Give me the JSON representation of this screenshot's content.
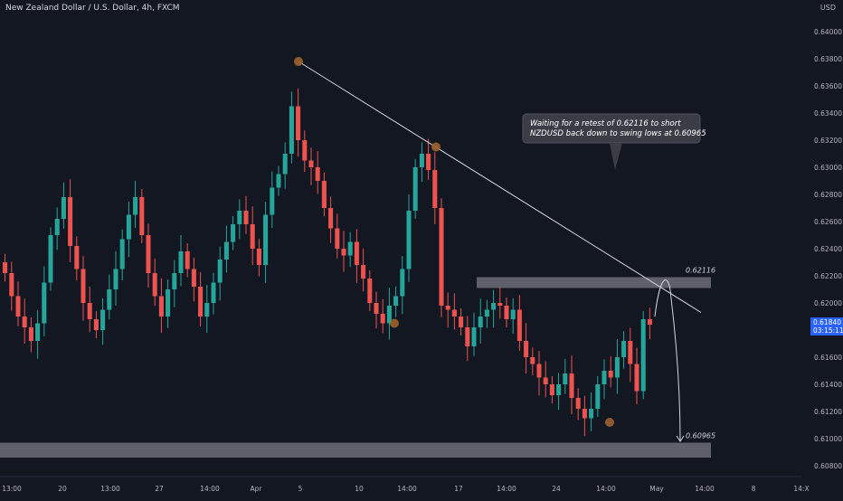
{
  "header": {
    "title": "New Zealand Dollar / U.S. Dollar, 4h, FXCM",
    "currency": "USD"
  },
  "colors": {
    "background": "#131722",
    "up": "#26a69a",
    "down": "#ef5350",
    "axis_text": "#b2b5be",
    "zone": "#787b86",
    "marker": "#a0622d",
    "price_tag": "#2962ff"
  },
  "chart_data": {
    "type": "candlestick",
    "title": "New Zealand Dollar / U.S. Dollar, 4h, FXCM",
    "ylabel": "USD",
    "ylim": [
      0.6072,
      0.6414
    ],
    "y_ticks": [
      0.64,
      0.638,
      0.636,
      0.634,
      0.632,
      0.63,
      0.628,
      0.626,
      0.624,
      0.622,
      0.62,
      0.618,
      0.616,
      0.614,
      0.612,
      0.61,
      0.608
    ],
    "y_tick_labels": [
      "0.64000",
      "0.63800",
      "0.63600",
      "0.63400",
      "0.63200",
      "0.63000",
      "0.62800",
      "0.62600",
      "0.62400",
      "0.62200",
      "0.62000",
      "0.61800",
      "0.61600",
      "0.61400",
      "0.61200",
      "0.61000",
      "0.60800"
    ],
    "x_tick_labels": [
      "13:00",
      "20",
      "13:00",
      "27",
      "14:00",
      "Apr",
      "5",
      "10",
      "14:00",
      "17",
      "14:00",
      "24",
      "14:00",
      "May",
      "14:00",
      "8",
      "14:X"
    ],
    "grid": false,
    "current_price": {
      "label": "0.61840",
      "countdown": "03:15:11"
    },
    "zones": [
      {
        "label": "0.62116",
        "price": 0.62116,
        "top": 0.6219,
        "bottom": 0.6211
      },
      {
        "label": "0.60965",
        "price": 0.60965,
        "top": 0.6097,
        "bottom": 0.6086
      }
    ],
    "trendline": {
      "from": {
        "bar": 44,
        "price": 0.6378
      },
      "to": {
        "bar": 130,
        "price": 0.6193
      }
    },
    "swing_points": [
      {
        "bar": 44,
        "price": 0.6378
      },
      {
        "bar": 58,
        "price": 0.6185
      },
      {
        "bar": 64,
        "price": 0.6315
      },
      {
        "bar": 90,
        "price": 0.6112
      }
    ],
    "annotation": {
      "lines": [
        "Waiting for a retest of 0.62116 to short",
        "NZDUSD back down to swing lows at 0.60965"
      ]
    },
    "candles_close": [
      0.6222,
      0.6205,
      0.619,
      0.6182,
      0.6172,
      0.6185,
      0.6215,
      0.625,
      0.6262,
      0.6278,
      0.6242,
      0.6225,
      0.62,
      0.6188,
      0.618,
      0.6195,
      0.621,
      0.6225,
      0.6247,
      0.6265,
      0.6278,
      0.625,
      0.6222,
      0.6205,
      0.619,
      0.621,
      0.6222,
      0.6238,
      0.6225,
      0.6212,
      0.619,
      0.62,
      0.6215,
      0.6232,
      0.6245,
      0.6258,
      0.6268,
      0.6258,
      0.624,
      0.6228,
      0.6265,
      0.6285,
      0.6295,
      0.631,
      0.6345,
      0.632,
      0.6305,
      0.63,
      0.629,
      0.627,
      0.6255,
      0.624,
      0.6235,
      0.6245,
      0.6228,
      0.6218,
      0.62,
      0.6192,
      0.6185,
      0.6198,
      0.6205,
      0.6225,
      0.6268,
      0.63,
      0.631,
      0.6298,
      0.627,
      0.6198,
      0.6195,
      0.619,
      0.6182,
      0.6168,
      0.6182,
      0.619,
      0.6195,
      0.62,
      0.6198,
      0.6188,
      0.6195,
      0.6172,
      0.616,
      0.6155,
      0.6145,
      0.614,
      0.6132,
      0.614,
      0.6148,
      0.613,
      0.6122,
      0.6115,
      0.6122,
      0.614,
      0.615,
      0.6145,
      0.616,
      0.6172,
      0.6155,
      0.6135,
      0.6188,
      0.6184
    ]
  },
  "axis_tags": {
    "zone_top": "0.62116",
    "zone_bottom": "0.60965"
  }
}
